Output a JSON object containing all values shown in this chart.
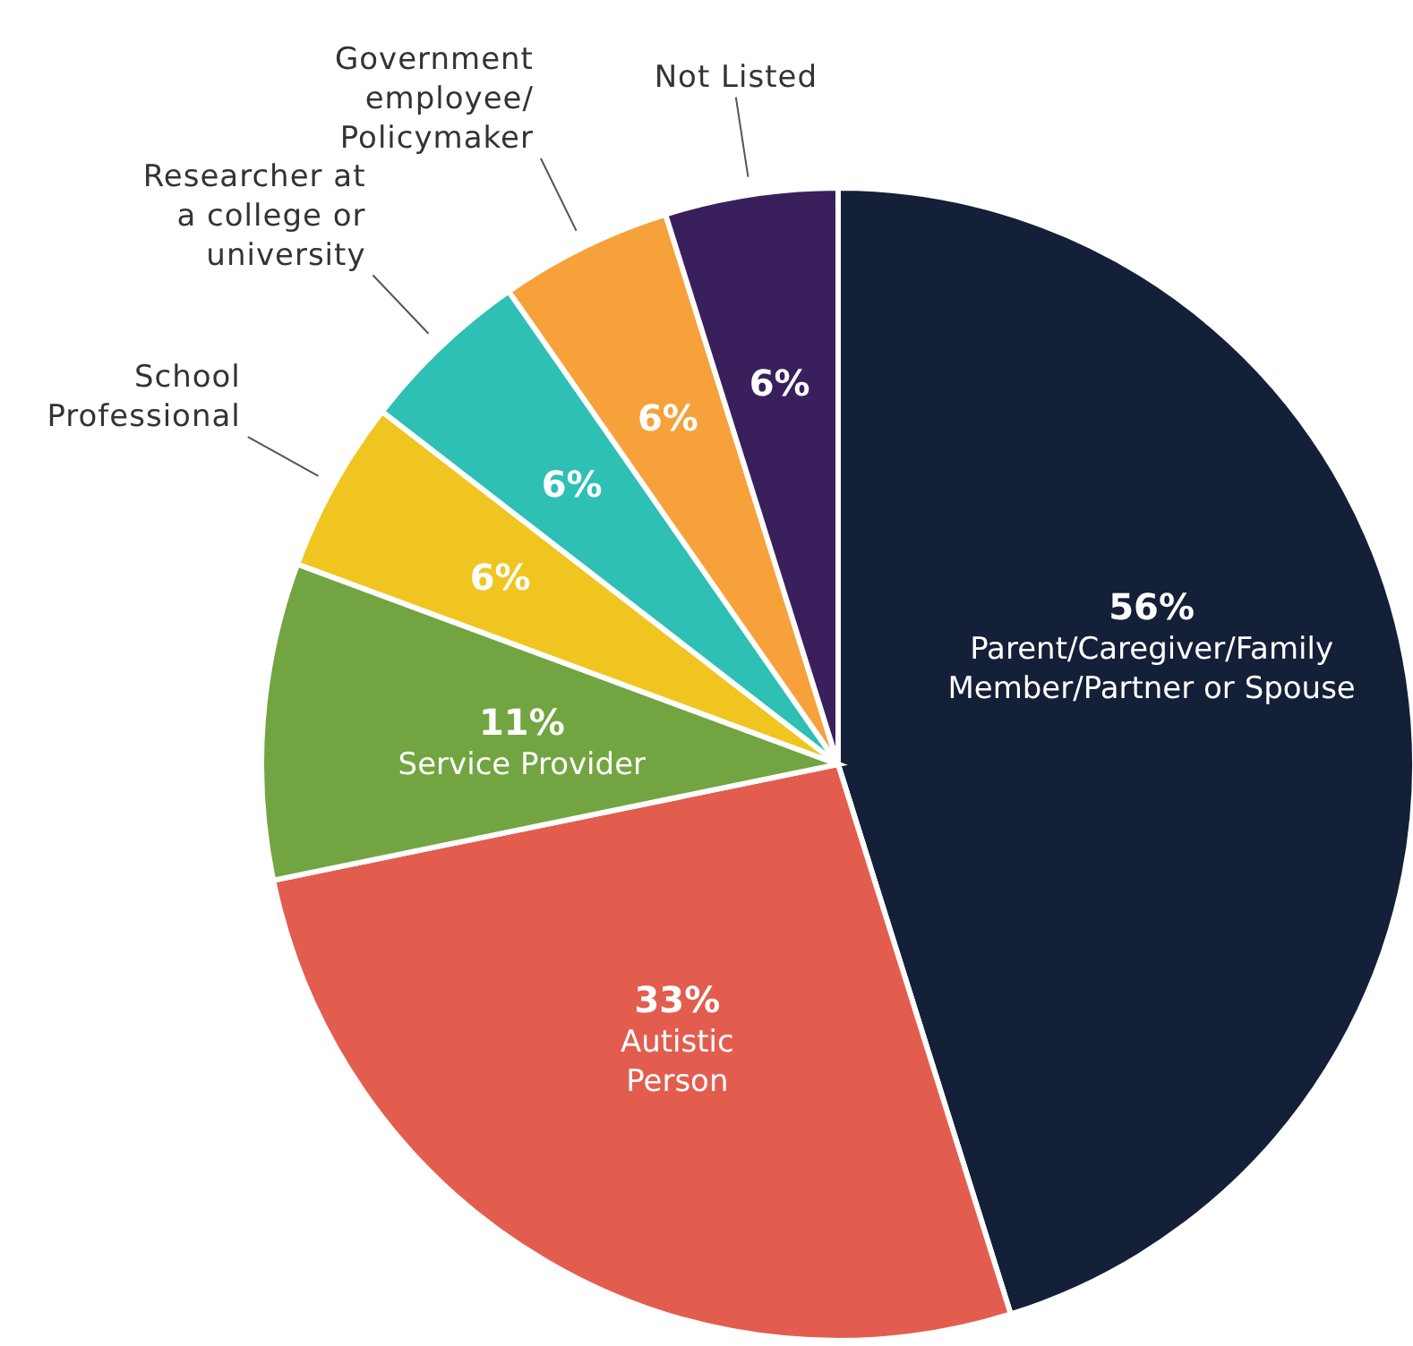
{
  "chart_data": {
    "type": "pie",
    "categories": [
      "Parent/Caregiver/Family\nMember/Partner or Spouse",
      "Autistic\nPerson",
      "Service Provider",
      "School\nProfessional",
      "Researcher at\na college or\nuniversity",
      "Government\nemployee/\nPolicymaker",
      "Not Listed"
    ],
    "values": [
      56,
      33,
      11,
      6,
      6,
      6,
      6
    ],
    "value_labels": [
      "56%",
      "33%",
      "11%",
      "6%",
      "6%",
      "6%",
      "6%"
    ],
    "colors": [
      "#141f38",
      "#e35d4f",
      "#72a541",
      "#f0c51f",
      "#2ebfb5",
      "#f7a13b",
      "#3a1f5d"
    ]
  }
}
